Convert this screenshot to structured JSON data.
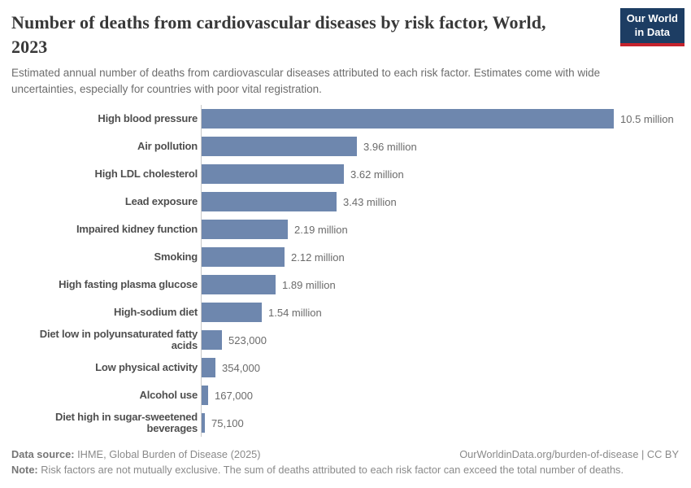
{
  "header": {
    "title_lines": [
      "Number of deaths from cardiovascular diseases by risk factor, World,",
      "2023"
    ],
    "subtitle": "Estimated annual number of deaths from cardiovascular diseases attributed to each risk factor. Estimates come with wide uncertainties, especially for countries with poor vital registration.",
    "logo": {
      "line1": "Our World",
      "line2": "in Data",
      "bg_color": "#1d3d63",
      "accent_color": "#c5232d"
    }
  },
  "chart_data": {
    "type": "bar",
    "orientation": "horizontal",
    "title": "Number of deaths from cardiovascular diseases by risk factor, World, 2023",
    "xlabel": "",
    "ylabel": "",
    "unit": "deaths",
    "year": "2023",
    "xlim": [
      0,
      10500000
    ],
    "grid": false,
    "bar_color": "#6e87ae",
    "axis_line_color": "#c9c9c9",
    "categories": [
      "High blood pressure",
      "Air pollution",
      "High LDL cholesterol",
      "Lead exposure",
      "Impaired kidney function",
      "Smoking",
      "High fasting plasma glucose",
      "High-sodium diet",
      "Diet low in polyunsaturated fatty acids",
      "Low physical activity",
      "Alcohol use",
      "Diet high in sugar-sweetened beverages"
    ],
    "values": [
      10500000,
      3960000,
      3620000,
      3430000,
      2190000,
      2120000,
      1890000,
      1540000,
      523000,
      354000,
      167000,
      75100
    ],
    "value_labels": [
      "10.5 million",
      "3.96 million",
      "3.62 million",
      "3.43 million",
      "2.19 million",
      "2.12 million",
      "1.89 million",
      "1.54 million",
      "523,000",
      "354,000",
      "167,000",
      "75,100"
    ]
  },
  "footer": {
    "data_source_label": "Data source:",
    "data_source_text": " IHME, Global Burden of Disease (2025)",
    "url_text": "OurWorldinData.org/burden-of-disease",
    "license_text": " | CC BY",
    "note_label": "Note:",
    "note_text": " Risk factors are not mutually exclusive. The sum of deaths attributed to each risk factor can exceed the total number of deaths."
  }
}
